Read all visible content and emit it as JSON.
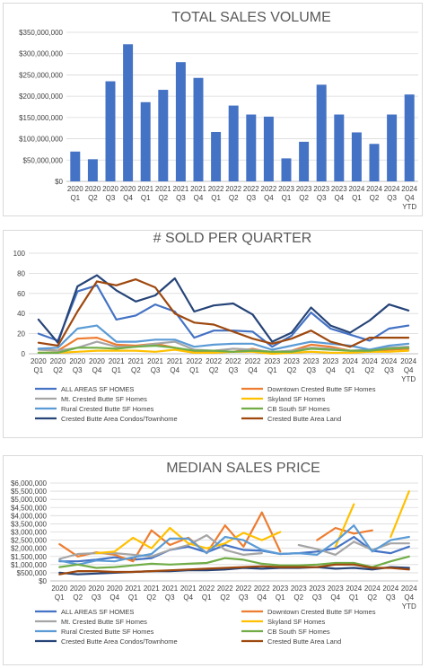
{
  "chart_data": [
    {
      "type": "bar",
      "title": "TOTAL SALES VOLUME",
      "categories": [
        "2020 Q1",
        "2020 Q2",
        "2020 Q3",
        "2020 Q4",
        "2021 Q1",
        "2021 Q2",
        "2021 Q3",
        "2021 Q4",
        "2022 Q1",
        "2022 Q2",
        "2022 Q3",
        "2022 Q4",
        "2023 Q1",
        "2023 Q2",
        "2023 Q3",
        "2023 Q4",
        "2024 Q1",
        "2024 Q2",
        "2024 Q3",
        "2024 Q4 YTD"
      ],
      "values": [
        70000000,
        52000000,
        235000000,
        322000000,
        186000000,
        215000000,
        280000000,
        243000000,
        116000000,
        178000000,
        157000000,
        152000000,
        54000000,
        93000000,
        227000000,
        157000000,
        115000000,
        88000000,
        157000000,
        204000000
      ],
      "ylim": [
        0,
        350000000
      ],
      "yticks": [
        "$0",
        "$50,000,000",
        "$100,000,000",
        "$150,000,000",
        "$200,000,000",
        "$250,000,000",
        "$300,000,000",
        "$350,000,000"
      ],
      "grid": true,
      "bar_color": "#4472c4"
    },
    {
      "type": "line",
      "title": "# SOLD PER QUARTER",
      "categories": [
        "2020 Q1",
        "2020 Q2",
        "2020 Q3",
        "2020 Q4",
        "2021 Q1",
        "2021 Q2",
        "2021 Q3",
        "2021 Q4",
        "2022 Q1",
        "2022 Q2",
        "2022 Q3",
        "2022 Q4",
        "2023 Q1",
        "2023 Q2",
        "2023 Q3",
        "2023 Q4",
        "2024 Q1",
        "2024 Q2",
        "2024 Q3",
        "2024 Q4 YTD"
      ],
      "ylim": [
        0,
        100
      ],
      "yticks": [
        "0",
        "20",
        "40",
        "60",
        "80",
        "100"
      ],
      "grid": true,
      "legend": "bottom",
      "series": [
        {
          "name": "ALL AREAS SF HOMES",
          "color": "#4472c4",
          "values": [
            20,
            13,
            62,
            68,
            34,
            38,
            49,
            42,
            16,
            23,
            23,
            22,
            7,
            18,
            41,
            25,
            19,
            13,
            25,
            28
          ]
        },
        {
          "name": "Downtown Crested Butte SF Homes",
          "color": "#ed7d31",
          "values": [
            5,
            3,
            15,
            16,
            9,
            8,
            10,
            6,
            2,
            2,
            2,
            5,
            1,
            3,
            9,
            7,
            3,
            2,
            4,
            5
          ]
        },
        {
          "name": "Mt. Crested Butte SF Homes",
          "color": "#a5a5a5",
          "values": [
            4,
            3,
            6,
            12,
            7,
            7,
            10,
            12,
            4,
            3,
            5,
            4,
            2,
            3,
            6,
            5,
            3,
            4,
            6,
            7
          ]
        },
        {
          "name": "Skyland SF Homes",
          "color": "#ffc000",
          "values": [
            1,
            1,
            2,
            3,
            3,
            3,
            2,
            4,
            1,
            1,
            2,
            2,
            0,
            1,
            2,
            1,
            1,
            2,
            2,
            3
          ]
        },
        {
          "name": "Rural Crested Butte SF Homes",
          "color": "#5b9bd5",
          "values": [
            5,
            6,
            25,
            28,
            12,
            12,
            14,
            14,
            7,
            9,
            10,
            10,
            4,
            8,
            12,
            10,
            8,
            4,
            8,
            10
          ]
        },
        {
          "name": "CB South SF Homes",
          "color": "#70ad47",
          "values": [
            1,
            1,
            6,
            6,
            5,
            7,
            8,
            6,
            3,
            3,
            2,
            3,
            2,
            2,
            5,
            4,
            3,
            3,
            5,
            6
          ]
        },
        {
          "name": "Crested Butte Area Condos/Townhome",
          "color": "#264478",
          "values": [
            34,
            11,
            67,
            78,
            63,
            52,
            58,
            75,
            42,
            48,
            50,
            39,
            12,
            21,
            46,
            28,
            21,
            33,
            49,
            43
          ]
        },
        {
          "name": "Crested Butte Area Land",
          "color": "#9e480e",
          "values": [
            11,
            8,
            42,
            72,
            68,
            74,
            66,
            40,
            31,
            29,
            22,
            15,
            10,
            15,
            23,
            12,
            7,
            16,
            16,
            16
          ]
        }
      ]
    },
    {
      "type": "line",
      "title": "MEDIAN SALES PRICE",
      "categories": [
        "2020 Q1",
        "2020 Q2",
        "2020 Q3",
        "2020 Q4",
        "2021 Q1",
        "2021 Q2",
        "2021 Q3",
        "2021 Q4",
        "2022 Q1",
        "2022 Q2",
        "2022 Q3",
        "2022 Q4",
        "2023 Q1",
        "2023 Q2",
        "2023 Q3",
        "2023 Q4",
        "2024 Q1",
        "2024 Q2",
        "2024 Q3",
        "2024 Q4 YTD"
      ],
      "ylim": [
        0,
        6000000
      ],
      "yticks": [
        "$0",
        "$500,000",
        "$1,000,000",
        "$1,500,000",
        "$2,000,000",
        "$2,500,000",
        "$3,000,000",
        "$3,500,000",
        "$4,000,000",
        "$4,500,000",
        "$5,000,000",
        "$5,500,000",
        "$6,000,000"
      ],
      "grid": true,
      "legend": "bottom",
      "series": [
        {
          "name": "ALL AREAS SF HOMES",
          "color": "#4472c4",
          "values": [
            1200000,
            1200000,
            1300000,
            1450000,
            1300000,
            1400000,
            1900000,
            2100000,
            1750000,
            2200000,
            1900000,
            1850000,
            1650000,
            1700000,
            1800000,
            2000000,
            2700000,
            1850000,
            1700000,
            2100000
          ]
        },
        {
          "name": "Downtown Crested Butte SF Homes",
          "color": "#ed7d31",
          "values": [
            2250000,
            1500000,
            1750000,
            1600000,
            1200000,
            3100000,
            2200000,
            2650000,
            1700000,
            3400000,
            2100000,
            4200000,
            1800000,
            null,
            2500000,
            3250000,
            2900000,
            3100000,
            null,
            null
          ]
        },
        {
          "name": "Mt. Crested Butte SF Homes",
          "color": "#a5a5a5",
          "values": [
            1350000,
            1650000,
            1700000,
            1700000,
            1600000,
            1500000,
            1900000,
            2200000,
            2800000,
            1900000,
            1600000,
            1700000,
            null,
            2200000,
            1950000,
            1600000,
            2400000,
            1900000,
            2300000,
            2300000
          ]
        },
        {
          "name": "Skyland SF Homes",
          "color": "#ffc000",
          "values": [
            null,
            null,
            1700000,
            1800000,
            2650000,
            2000000,
            3250000,
            2300000,
            2000000,
            2300000,
            2950000,
            2500000,
            3000000,
            null,
            null,
            2100000,
            4700000,
            null,
            2700000,
            5500000
          ]
        },
        {
          "name": "Rural Crested Butte SF Homes",
          "color": "#5b9bd5",
          "values": [
            1250000,
            1000000,
            1250000,
            1200000,
            1450000,
            1650000,
            2600000,
            2600000,
            1700000,
            2700000,
            2500000,
            1900000,
            1650000,
            1700000,
            1600000,
            2400000,
            3400000,
            1800000,
            2500000,
            2700000
          ]
        },
        {
          "name": "CB South SF Homes",
          "color": "#70ad47",
          "values": [
            850000,
            1000000,
            800000,
            850000,
            950000,
            1050000,
            1000000,
            1050000,
            1100000,
            1400000,
            1300000,
            1050000,
            950000,
            950000,
            1000000,
            1100000,
            1100000,
            850000,
            1200000,
            1500000
          ]
        },
        {
          "name": "Crested Butte Area Condos/Townhome",
          "color": "#264478",
          "values": [
            500000,
            400000,
            450000,
            500000,
            550000,
            600000,
            600000,
            650000,
            650000,
            700000,
            800000,
            750000,
            800000,
            800000,
            850000,
            750000,
            800000,
            700000,
            850000,
            800000
          ]
        },
        {
          "name": "Crested Butte Area Land",
          "color": "#9e480e",
          "values": [
            400000,
            600000,
            600000,
            550000,
            550000,
            600000,
            650000,
            700000,
            750000,
            800000,
            850000,
            900000,
            850000,
            850000,
            850000,
            1000000,
            1000000,
            800000,
            800000,
            700000
          ]
        }
      ]
    }
  ]
}
